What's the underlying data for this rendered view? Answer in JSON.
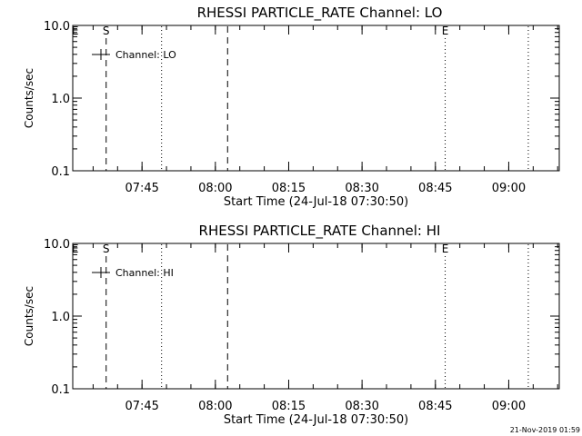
{
  "chart_data": [
    {
      "type": "line",
      "title": "RHESSI PARTICLE_RATE Channel: LO",
      "ylabel": "Counts/sec",
      "xlabel": "Start Time (24-Jul-18 07:30:50)",
      "y_scale": "log",
      "ylim": [
        0.1,
        10.0
      ],
      "y_ticks": [
        "10.0",
        "1.0",
        "0.1"
      ],
      "xlim": [
        "07:30:50",
        "09:10:20"
      ],
      "x_ticks": [
        "07:45",
        "08:00",
        "08:15",
        "08:30",
        "08:45",
        "09:00"
      ],
      "legend": {
        "placement": "top-left",
        "entries": [
          {
            "label": "Channel: LO"
          }
        ]
      },
      "series": [
        {
          "name": "Channel: LO",
          "values": []
        }
      ],
      "markers": [
        {
          "label": "E",
          "time": "07:31:20",
          "style": "none"
        },
        {
          "label": "S",
          "time": "07:37:40",
          "style": "dashed"
        },
        {
          "label": "",
          "time": "07:49:00",
          "style": "dotted"
        },
        {
          "label": "",
          "time": "08:02:30",
          "style": "dashed"
        },
        {
          "label": "E",
          "time": "08:47:00",
          "style": "dotted"
        },
        {
          "label": "",
          "time": "09:04:00",
          "style": "dotted"
        }
      ]
    },
    {
      "type": "line",
      "title": "RHESSI PARTICLE_RATE Channel: HI",
      "ylabel": "Counts/sec",
      "xlabel": "Start Time (24-Jul-18 07:30:50)",
      "y_scale": "log",
      "ylim": [
        0.1,
        10.0
      ],
      "y_ticks": [
        "10.0",
        "1.0",
        "0.1"
      ],
      "xlim": [
        "07:30:50",
        "09:10:20"
      ],
      "x_ticks": [
        "07:45",
        "08:00",
        "08:15",
        "08:30",
        "08:45",
        "09:00"
      ],
      "legend": {
        "placement": "top-left",
        "entries": [
          {
            "label": "Channel: HI"
          }
        ]
      },
      "series": [
        {
          "name": "Channel: HI",
          "values": []
        }
      ],
      "markers": [
        {
          "label": "E",
          "time": "07:31:20",
          "style": "none"
        },
        {
          "label": "S",
          "time": "07:37:40",
          "style": "dashed"
        },
        {
          "label": "",
          "time": "07:49:00",
          "style": "dotted"
        },
        {
          "label": "",
          "time": "08:02:30",
          "style": "dashed"
        },
        {
          "label": "E",
          "time": "08:47:00",
          "style": "dotted"
        },
        {
          "label": "",
          "time": "09:04:00",
          "style": "dotted"
        }
      ]
    }
  ],
  "footer": {
    "timestamp": "21-Nov-2019 01:59"
  }
}
